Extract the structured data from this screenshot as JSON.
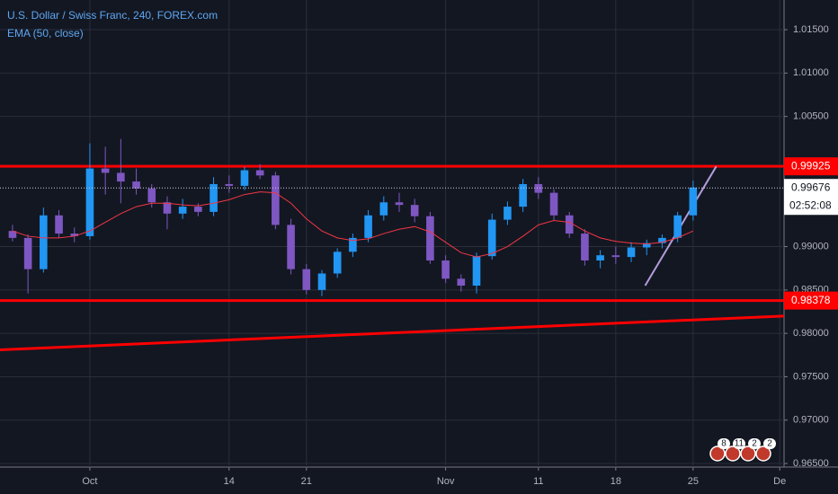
{
  "chart_data": {
    "type": "candlestick",
    "title": "U.S. Dollar / Swiss Franc, 240, FOREX.com",
    "x": [
      -5,
      -4,
      -3,
      -2,
      -1,
      0,
      1,
      2,
      3,
      4,
      5,
      6,
      7,
      8,
      9,
      10,
      11,
      12,
      13,
      14,
      15,
      16,
      17,
      18,
      19,
      20,
      21,
      22,
      23,
      24,
      25,
      26,
      27,
      28,
      29,
      30,
      31,
      32,
      33,
      34,
      35,
      36,
      37,
      38,
      39
    ],
    "open": [
      0.9918,
      0.991,
      0.9874,
      0.9936,
      0.9915,
      0.9912,
      0.999,
      0.9985,
      0.9975,
      0.9967,
      0.9951,
      0.9938,
      0.9946,
      0.994,
      0.9972,
      0.997,
      0.9988,
      0.9982,
      0.9925,
      0.9874,
      0.985,
      0.9869,
      0.9894,
      0.991,
      0.9936,
      0.9951,
      0.9948,
      0.9935,
      0.9884,
      0.9863,
      0.9855,
      0.9889,
      0.9931,
      0.9946,
      0.9972,
      0.9962,
      0.9936,
      0.9915,
      0.9884,
      0.989,
      0.9888,
      0.9899,
      0.9904,
      0.991,
      0.9936
    ],
    "high": [
      0.9925,
      0.9914,
      0.9945,
      0.9942,
      0.9922,
      1.0019,
      1.0015,
      1.0024,
      0.999,
      0.9972,
      0.9958,
      0.9955,
      0.995,
      0.998,
      0.9982,
      0.9992,
      0.9995,
      0.9986,
      0.9932,
      0.988,
      0.9873,
      0.9898,
      0.9915,
      0.9942,
      0.9958,
      0.9962,
      0.9955,
      0.994,
      0.989,
      0.9868,
      0.9893,
      0.9938,
      0.9952,
      0.9978,
      0.998,
      0.9966,
      0.994,
      0.992,
      0.9896,
      0.99,
      0.9905,
      0.9908,
      0.9914,
      0.994,
      0.9976
    ],
    "low": [
      0.9906,
      0.9846,
      0.987,
      0.991,
      0.9905,
      0.9908,
      0.996,
      0.995,
      0.996,
      0.9945,
      0.992,
      0.9932,
      0.9935,
      0.9935,
      0.9962,
      0.9965,
      0.9978,
      0.992,
      0.9868,
      0.9845,
      0.9843,
      0.9864,
      0.9888,
      0.9905,
      0.993,
      0.994,
      0.9928,
      0.988,
      0.9858,
      0.9848,
      0.9846,
      0.9885,
      0.9925,
      0.994,
      0.9955,
      0.993,
      0.991,
      0.9878,
      0.9875,
      0.988,
      0.9882,
      0.989,
      0.9898,
      0.9905,
      0.993
    ],
    "close": [
      0.991,
      0.9874,
      0.9936,
      0.9915,
      0.9912,
      0.999,
      0.9985,
      0.9975,
      0.9967,
      0.9951,
      0.9938,
      0.9946,
      0.994,
      0.9972,
      0.997,
      0.9988,
      0.9982,
      0.9925,
      0.9874,
      0.985,
      0.9869,
      0.9894,
      0.991,
      0.9936,
      0.9951,
      0.9948,
      0.9935,
      0.9884,
      0.9863,
      0.9855,
      0.9889,
      0.9931,
      0.9946,
      0.9972,
      0.9962,
      0.9936,
      0.9915,
      0.9884,
      0.989,
      0.9888,
      0.9899,
      0.9904,
      0.991,
      0.9936,
      0.9968
    ],
    "up_color": "#2196f3",
    "down_color": "#7e57c2",
    "series": [
      {
        "name": "EMA (50, close)",
        "color": "#f23645",
        "values": [
          0.9918,
          0.9912,
          0.991,
          0.991,
          0.9912,
          0.9918,
          0.9928,
          0.9938,
          0.9946,
          0.995,
          0.995,
          0.9948,
          0.9947,
          0.995,
          0.9954,
          0.996,
          0.9963,
          0.9962,
          0.995,
          0.9932,
          0.9918,
          0.991,
          0.9907,
          0.9909,
          0.9915,
          0.992,
          0.9923,
          0.9917,
          0.9905,
          0.9893,
          0.9888,
          0.9892,
          0.99,
          0.9912,
          0.9925,
          0.993,
          0.9928,
          0.9918,
          0.991,
          0.9906,
          0.9904,
          0.9903,
          0.9905,
          0.991,
          0.9918
        ]
      }
    ],
    "xlim": [
      -5.81,
      44.88
    ],
    "xticks": [
      {
        "value": 0,
        "label": "Oct"
      },
      {
        "value": 9,
        "label": "14"
      },
      {
        "value": 14,
        "label": "21"
      },
      {
        "value": 23,
        "label": "Nov"
      },
      {
        "value": 29,
        "label": "11"
      },
      {
        "value": 34,
        "label": "18"
      },
      {
        "value": 39,
        "label": "25"
      },
      {
        "value": 44.6,
        "label": "De"
      }
    ],
    "ylim": [
      0.96459,
      1.01842
    ],
    "yticks": [
      {
        "value": 1.015,
        "label": "1.01500"
      },
      {
        "value": 1.01,
        "label": "1.01000"
      },
      {
        "value": 1.005,
        "label": "1.00500"
      },
      {
        "value": 0.99,
        "label": "0.99000"
      },
      {
        "value": 0.985,
        "label": "0.98500"
      },
      {
        "value": 0.98,
        "label": "0.98000"
      },
      {
        "value": 0.975,
        "label": "0.97500"
      },
      {
        "value": 0.97,
        "label": "0.97000"
      },
      {
        "value": 0.965,
        "label": "0.96500"
      }
    ],
    "grid": true,
    "levels": [
      {
        "value": 0.99925,
        "color": "#ff0000"
      },
      {
        "value": 0.98378,
        "color": "#ff0000"
      }
    ],
    "last_price": {
      "value": 0.99676,
      "countdown": "02:52:08"
    },
    "trendlines": [
      {
        "x": [
          -5.81,
          44.88
        ],
        "y": [
          0.9781,
          0.982
        ],
        "color": "#ff0000"
      },
      {
        "x": [
          35.9,
          40.5
        ],
        "y": [
          0.9855,
          0.99925
        ],
        "color": "#b39ddb"
      }
    ],
    "events": [
      8,
      11,
      2,
      2
    ]
  }
}
